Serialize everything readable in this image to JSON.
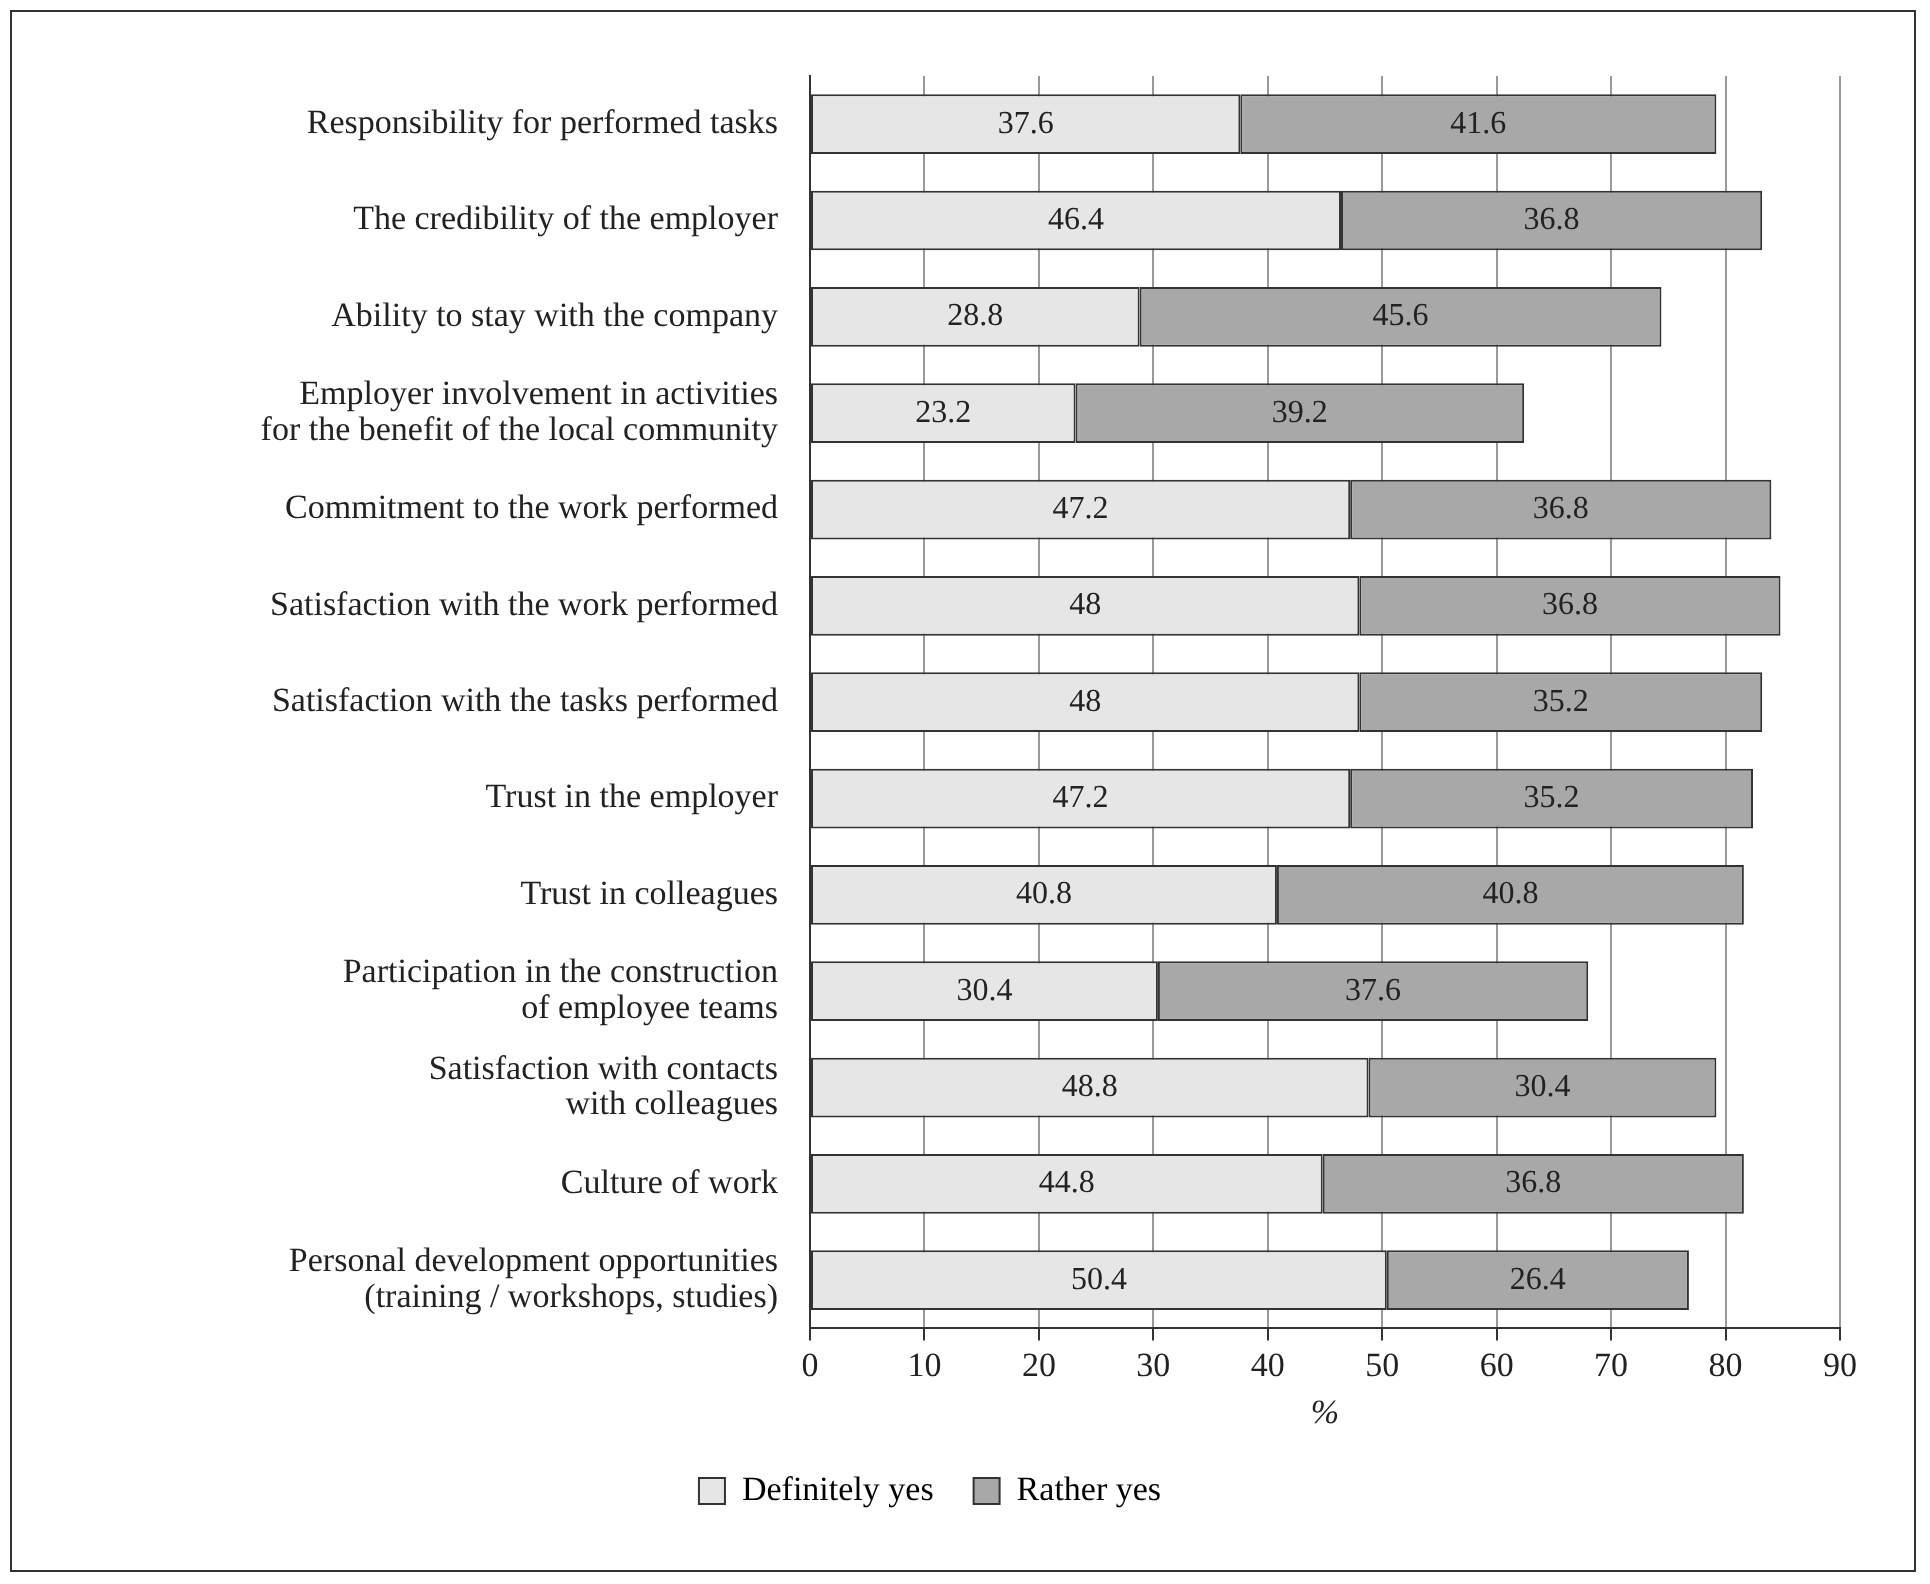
{
  "chart_data": {
    "type": "bar",
    "orientation": "horizontal",
    "stacked": true,
    "categories": [
      "Responsibility for performed tasks",
      "The credibility of the employer",
      "Ability to stay with the company",
      "Employer involvement in activities\nfor the benefit of the local community",
      "Commitment to the work performed",
      "Satisfaction with the work performed",
      "Satisfaction with the tasks performed",
      "Trust in the employer",
      "Trust in colleagues",
      "Participation in the construction\nof employee teams",
      "Satisfaction with contacts\nwith colleagues",
      "Culture of work",
      "Personal development opportunities\n(training / workshops, studies)"
    ],
    "series": [
      {
        "name": "Definitely yes",
        "color": "#e6e6e6",
        "values": [
          37.6,
          46.4,
          28.8,
          23.2,
          47.2,
          48,
          48,
          47.2,
          40.8,
          30.4,
          48.8,
          44.8,
          50.4
        ]
      },
      {
        "name": "Rather yes",
        "color": "#a8a8a8",
        "values": [
          41.6,
          36.8,
          45.6,
          39.2,
          36.8,
          36.8,
          35.2,
          35.2,
          40.8,
          37.6,
          30.4,
          36.8,
          26.4
        ]
      }
    ],
    "xlabel": "%",
    "xlim": [
      0,
      90
    ],
    "xticks": [
      0,
      10,
      20,
      30,
      40,
      50,
      60,
      70,
      80,
      90
    ],
    "grid": "x",
    "legend": "bottom",
    "data_labels": true
  }
}
